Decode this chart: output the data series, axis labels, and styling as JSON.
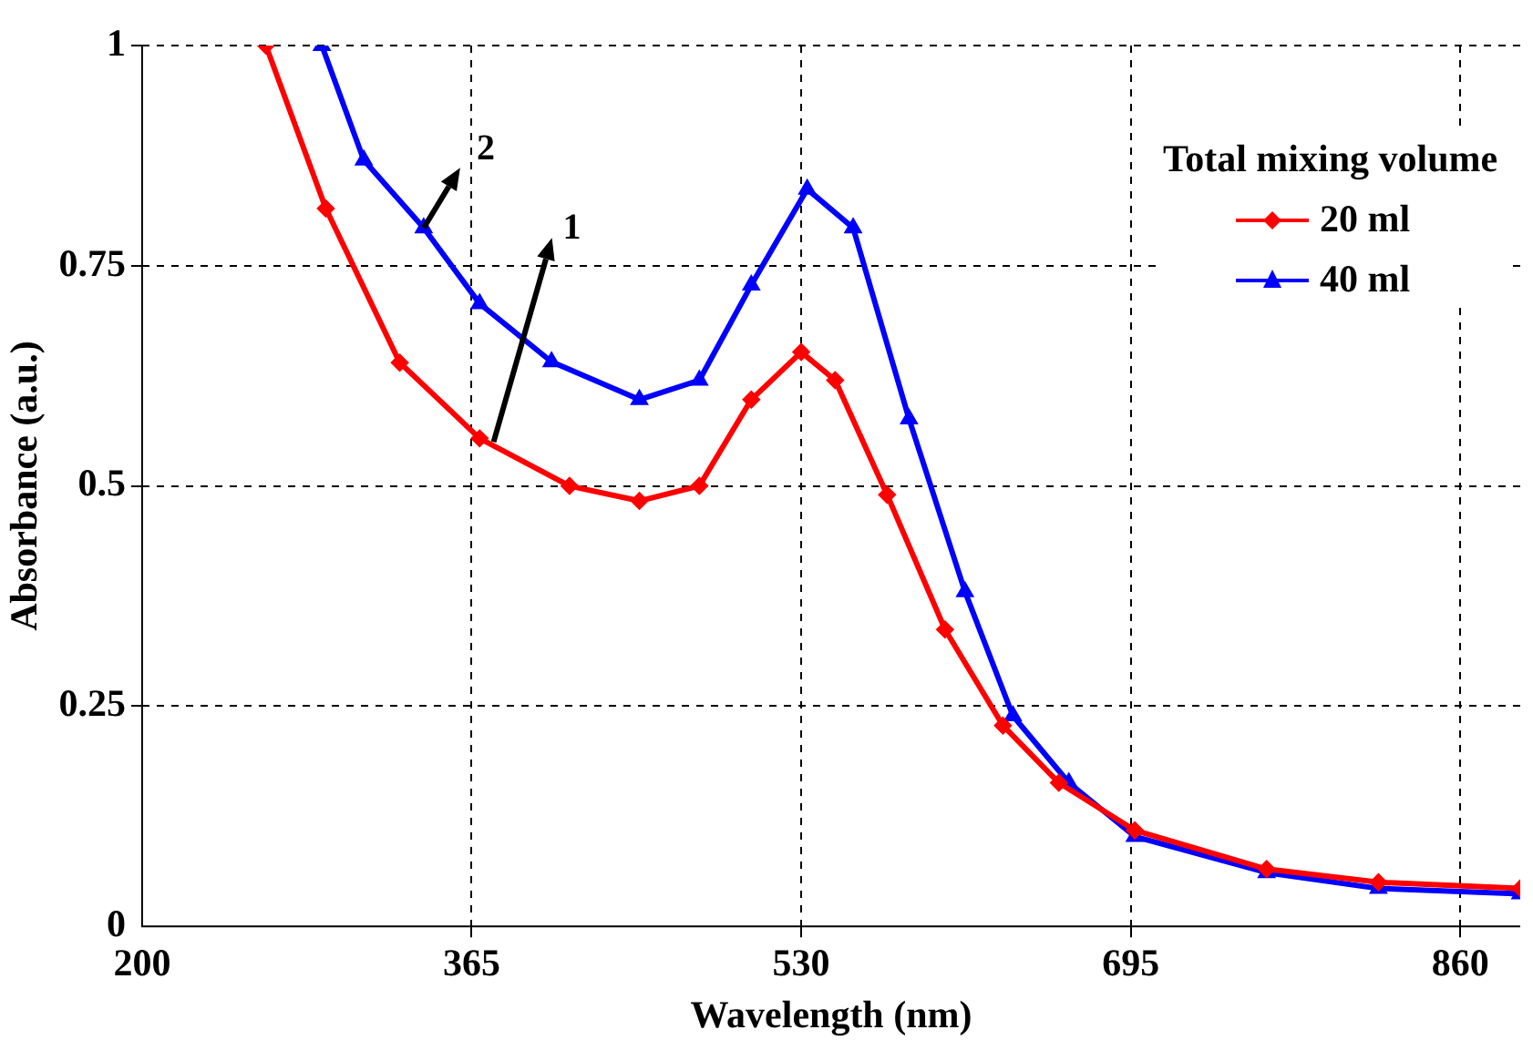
{
  "chart_data": {
    "type": "line",
    "xlabel": "Wavelength (nm)",
    "ylabel": "Absorbance (a.u.)",
    "legend_title": "Total mixing volume",
    "legend": "top right",
    "grid": true,
    "line_style": "solid",
    "xlim": [
      200,
      890
    ],
    "xticks": [
      200,
      365,
      530,
      695,
      860
    ],
    "ylim": [
      0,
      1
    ],
    "yticks": [
      0,
      0.25,
      0.5,
      0.75,
      1
    ],
    "annotations": [
      {
        "text": "1",
        "x": 376,
        "y": 0.55
      },
      {
        "text": "2",
        "x": 341,
        "y": 0.793
      }
    ],
    "series": [
      {
        "name": "20 ml",
        "color": "#ff0000",
        "marker": "diamond",
        "x": [
          262,
          292,
          329,
          369,
          414,
          449,
          479,
          505,
          530,
          547,
          573,
          602,
          631,
          659,
          697,
          763,
          819,
          890
        ],
        "values": [
          1.0,
          0.815,
          0.64,
          0.554,
          0.5,
          0.483,
          0.5,
          0.598,
          0.652,
          0.62,
          0.49,
          0.337,
          0.228,
          0.163,
          0.109,
          0.065,
          0.05,
          0.043
        ]
      },
      {
        "name": "40 ml",
        "color": "#0000ff",
        "marker": "triangle",
        "x": [
          290,
          311,
          341,
          369,
          405,
          449,
          479,
          505,
          533,
          556,
          584,
          612,
          636,
          664,
          697,
          763,
          819,
          890
        ],
        "values": [
          1.0,
          0.87,
          0.793,
          0.707,
          0.641,
          0.598,
          0.62,
          0.728,
          0.837,
          0.793,
          0.576,
          0.38,
          0.239,
          0.163,
          0.102,
          0.061,
          0.043,
          0.037
        ]
      }
    ]
  }
}
